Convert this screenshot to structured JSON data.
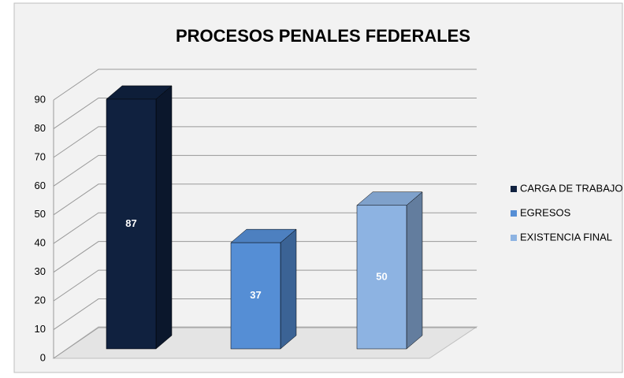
{
  "chart_data": {
    "type": "bar3d",
    "title": "PROCESOS PENALES FEDERALES",
    "categories": [
      null
    ],
    "series": [
      {
        "name": "CARGA DE TRABAJO",
        "color": "#10213f",
        "values": [
          87
        ]
      },
      {
        "name": "EGRESOS",
        "color": "#558ed5",
        "values": [
          37
        ]
      },
      {
        "name": "EXISTENCIA FINAL",
        "color": "#8db3e2",
        "values": [
          50
        ]
      }
    ],
    "ylim": [
      0,
      90
    ],
    "yticks": [
      0,
      10,
      20,
      30,
      40,
      50,
      60,
      70,
      80,
      90
    ],
    "grid": true,
    "legend": "right"
  }
}
